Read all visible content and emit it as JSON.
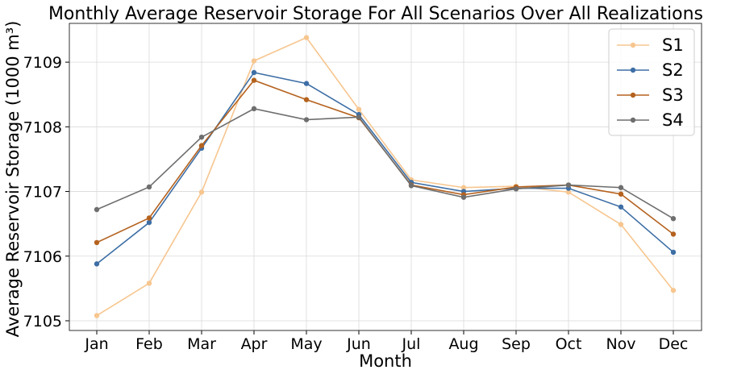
{
  "chart_data": {
    "type": "line",
    "title": "Monthly Average Reservoir Storage For All Scenarios Over All Realizations",
    "xlabel": "Month",
    "ylabel": "Average Reservoir Storage (1000 m³)",
    "categories": [
      "Jan",
      "Feb",
      "Mar",
      "Apr",
      "May",
      "Jun",
      "Jul",
      "Aug",
      "Sep",
      "Oct",
      "Nov",
      "Dec"
    ],
    "yticks": [
      7105,
      7106,
      7107,
      7108,
      7109
    ],
    "ylim": [
      7104.85,
      7109.6
    ],
    "grid": true,
    "legend_position": "top-right",
    "series": [
      {
        "name": "S1",
        "color": "#f7c68f",
        "values": [
          7105.08,
          7105.58,
          7106.99,
          7109.02,
          7109.38,
          7108.27,
          7107.18,
          7107.06,
          7107.08,
          7106.99,
          7106.49,
          7105.47
        ]
      },
      {
        "name": "S2",
        "color": "#3d6ea5",
        "values": [
          7105.88,
          7106.52,
          7107.67,
          7108.84,
          7108.67,
          7108.19,
          7107.14,
          7107.0,
          7107.05,
          7107.05,
          7106.76,
          7106.06
        ]
      },
      {
        "name": "S3",
        "color": "#b5621e",
        "values": [
          7106.21,
          7106.59,
          7107.71,
          7108.72,
          7108.42,
          7108.14,
          7107.1,
          7106.95,
          7107.07,
          7107.1,
          7106.96,
          7106.34
        ]
      },
      {
        "name": "S4",
        "color": "#6e6e6e",
        "values": [
          7106.72,
          7107.07,
          7107.84,
          7108.28,
          7108.11,
          7108.15,
          7107.09,
          7106.91,
          7107.04,
          7107.1,
          7107.06,
          7106.58
        ]
      }
    ]
  }
}
